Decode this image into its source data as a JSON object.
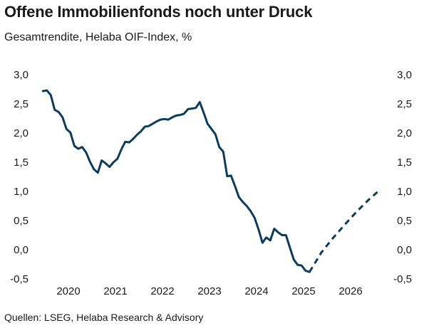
{
  "title": "Offene Immobilienfonds noch unter Druck",
  "subtitle": "Gesamtrendite, Helaba OIF-Index, %",
  "source": "Quellen: LSEG, Helaba Research & Advisory",
  "colors": {
    "line": "#0d3b5c",
    "text": "#1a1a1a"
  },
  "chart_data": {
    "type": "line",
    "ylim": [
      -0.5,
      3.0
    ],
    "yticks": [
      "3,0",
      "2,5",
      "2,0",
      "1,5",
      "1,0",
      "0,5",
      "0,0",
      "-0,5"
    ],
    "yticks_right": [
      "3,0",
      "2,5",
      "2,0",
      "1,5",
      "1,0",
      "0,5",
      "0,0",
      "-0,5"
    ],
    "xticks": [
      "2020",
      "2021",
      "2022",
      "2023",
      "2024",
      "2025",
      "2026"
    ],
    "grid": false,
    "series": [
      {
        "style": "solid",
        "points": [
          [
            "2019-06",
            2.72
          ],
          [
            "2019-07",
            2.73
          ],
          [
            "2019-08",
            2.65
          ],
          [
            "2019-09",
            2.4
          ],
          [
            "2019-10",
            2.36
          ],
          [
            "2019-11",
            2.27
          ],
          [
            "2019-12",
            2.07
          ],
          [
            "2020-01",
            2.01
          ],
          [
            "2020-02",
            1.78
          ],
          [
            "2020-03",
            1.73
          ],
          [
            "2020-04",
            1.76
          ],
          [
            "2020-05",
            1.67
          ],
          [
            "2020-06",
            1.51
          ],
          [
            "2020-07",
            1.38
          ],
          [
            "2020-08",
            1.32
          ],
          [
            "2020-09",
            1.53
          ],
          [
            "2020-10",
            1.48
          ],
          [
            "2020-11",
            1.42
          ],
          [
            "2020-12",
            1.5
          ],
          [
            "2021-01",
            1.56
          ],
          [
            "2021-02",
            1.72
          ],
          [
            "2021-03",
            1.85
          ],
          [
            "2021-04",
            1.84
          ],
          [
            "2021-05",
            1.9
          ],
          [
            "2021-06",
            1.97
          ],
          [
            "2021-07",
            2.03
          ],
          [
            "2021-08",
            2.11
          ],
          [
            "2021-09",
            2.12
          ],
          [
            "2021-10",
            2.16
          ],
          [
            "2021-11",
            2.2
          ],
          [
            "2021-12",
            2.23
          ],
          [
            "2022-01",
            2.24
          ],
          [
            "2022-02",
            2.23
          ],
          [
            "2022-03",
            2.27
          ],
          [
            "2022-04",
            2.3
          ],
          [
            "2022-05",
            2.31
          ],
          [
            "2022-06",
            2.33
          ],
          [
            "2022-07",
            2.41
          ],
          [
            "2022-08",
            2.42
          ],
          [
            "2022-09",
            2.43
          ],
          [
            "2022-10",
            2.53
          ],
          [
            "2022-11",
            2.35
          ],
          [
            "2022-12",
            2.16
          ],
          [
            "2023-01",
            2.07
          ],
          [
            "2023-02",
            1.98
          ],
          [
            "2023-03",
            1.76
          ],
          [
            "2023-04",
            1.68
          ],
          [
            "2023-05",
            1.26
          ],
          [
            "2023-06",
            1.27
          ],
          [
            "2023-07",
            1.09
          ],
          [
            "2023-08",
            0.9
          ],
          [
            "2023-09",
            0.82
          ],
          [
            "2023-10",
            0.75
          ],
          [
            "2023-11",
            0.66
          ],
          [
            "2023-12",
            0.55
          ],
          [
            "2024-01",
            0.35
          ],
          [
            "2024-02",
            0.12
          ],
          [
            "2024-03",
            0.21
          ],
          [
            "2024-04",
            0.16
          ],
          [
            "2024-05",
            0.36
          ],
          [
            "2024-06",
            0.3
          ],
          [
            "2024-07",
            0.25
          ],
          [
            "2024-08",
            0.25
          ],
          [
            "2024-09",
            0.04
          ],
          [
            "2024-10",
            -0.17
          ],
          [
            "2024-11",
            -0.26
          ],
          [
            "2024-12",
            -0.27
          ],
          [
            "2025-01",
            -0.36
          ],
          [
            "2025-02",
            -0.38
          ]
        ]
      },
      {
        "style": "dashed",
        "points": [
          [
            "2025-02",
            -0.38
          ],
          [
            "2025-05",
            -0.05
          ],
          [
            "2025-08",
            0.2
          ],
          [
            "2025-11",
            0.43
          ],
          [
            "2026-02",
            0.65
          ],
          [
            "2026-05",
            0.85
          ],
          [
            "2026-07",
            0.97
          ],
          [
            "2026-08",
            1.04
          ]
        ]
      }
    ]
  }
}
